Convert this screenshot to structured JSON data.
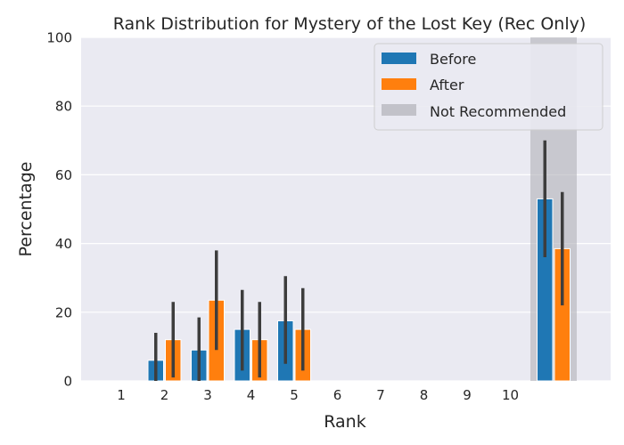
{
  "chart_data": {
    "type": "bar",
    "title": "Rank Distribution for Mystery of the Lost Key (Rec Only)",
    "xlabel": "Rank",
    "ylabel": "Percentage",
    "ylim": [
      0,
      100
    ],
    "yticks": [
      0,
      20,
      40,
      60,
      80,
      100
    ],
    "categories": [
      "1",
      "2",
      "3",
      "4",
      "5",
      "6",
      "7",
      "8",
      "9",
      "10",
      ""
    ],
    "series": [
      {
        "name": "Before",
        "color": "#1f77b4",
        "values": [
          0,
          6,
          9,
          15,
          17.5,
          0,
          0,
          0,
          0,
          0,
          53
        ],
        "ci_low": [
          0,
          0,
          0,
          3,
          5,
          0,
          0,
          0,
          0,
          0,
          36
        ],
        "ci_high": [
          0,
          14,
          18.5,
          26.5,
          30.5,
          0,
          0,
          0,
          0,
          0,
          70
        ]
      },
      {
        "name": "After",
        "color": "#ff7f0e",
        "values": [
          0,
          12,
          23.5,
          12,
          15,
          0,
          0,
          0,
          0,
          0,
          38.5
        ],
        "ci_low": [
          0,
          1,
          9,
          1,
          3,
          0,
          0,
          0,
          0,
          0,
          22
        ],
        "ci_high": [
          0,
          23,
          38,
          23,
          27,
          0,
          0,
          0,
          0,
          0,
          55
        ]
      }
    ],
    "highlight": {
      "name": "Not Recommended",
      "category_index": 10,
      "color": "#b0b0b8"
    },
    "legend": {
      "position": "top-right",
      "items": [
        "Before",
        "After",
        "Not Recommended"
      ]
    },
    "grid": true,
    "background": "#eaeaf2"
  }
}
